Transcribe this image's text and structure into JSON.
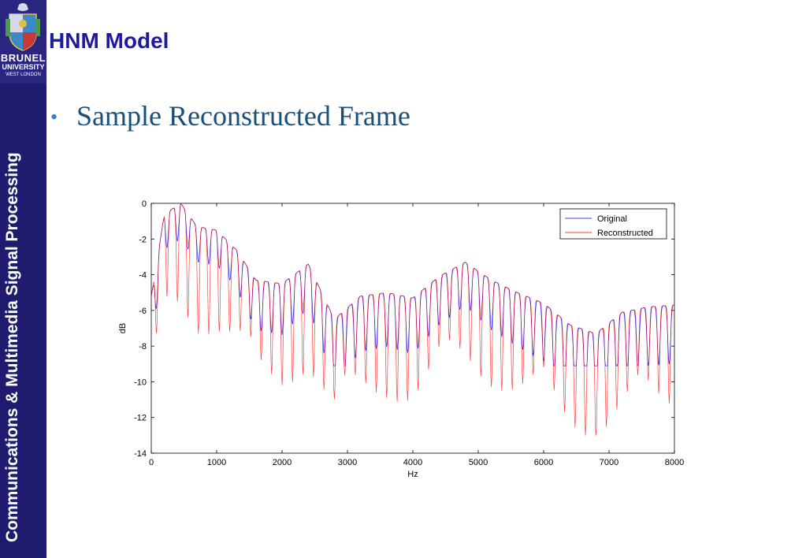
{
  "slide": {
    "title": "HNM Model",
    "bullet": "Sample Reconstructed Frame",
    "sidebar_vertical_text": "Communications & Multimedia Signal Processing",
    "logo": {
      "line1": "BRUNEL",
      "line2": "UNIVERSITY",
      "line3": "WEST LONDON"
    }
  },
  "colors": {
    "sidebar": "#1f1b6e",
    "title": "#1e1a9c",
    "bullet_text": "#1c4f78",
    "original": "#0000ff",
    "reconstructed": "#ff0000"
  },
  "chart_data": {
    "type": "line",
    "title": "",
    "xlabel": "Hz",
    "ylabel": "dB",
    "xlim": [
      0,
      8000
    ],
    "ylim": [
      -14,
      0
    ],
    "xticks": [
      0,
      1000,
      2000,
      3000,
      4000,
      5000,
      6000,
      7000,
      8000
    ],
    "yticks": [
      0,
      -2,
      -4,
      -6,
      -8,
      -10,
      -12,
      -14
    ],
    "grid": false,
    "legend": "top-right",
    "legend_entries": [
      "Original",
      "Reconstructed"
    ],
    "harmonic_spacing_hz": 160,
    "envelope": {
      "x": [
        0,
        200,
        450,
        700,
        1000,
        1300,
        1600,
        2000,
        2400,
        2800,
        3200,
        3600,
        4000,
        4400,
        4800,
        5200,
        5600,
        6000,
        6400,
        6800,
        7200,
        7600,
        8000
      ],
      "y": [
        -5.2,
        -0.6,
        0.0,
        -1.3,
        -1.5,
        -2.6,
        -4.3,
        -4.5,
        -3.4,
        -6.5,
        -5.2,
        -5.0,
        -5.3,
        -4.1,
        -3.3,
        -4.3,
        -5.0,
        -5.6,
        -6.8,
        -7.3,
        -6.1,
        -5.8,
        -5.7
      ]
    },
    "series": [
      {
        "name": "Original",
        "min_y": -9.1,
        "color": "#0000ff"
      },
      {
        "name": "Reconstructed",
        "min_y": -13.0,
        "color": "#ff0000"
      }
    ]
  }
}
